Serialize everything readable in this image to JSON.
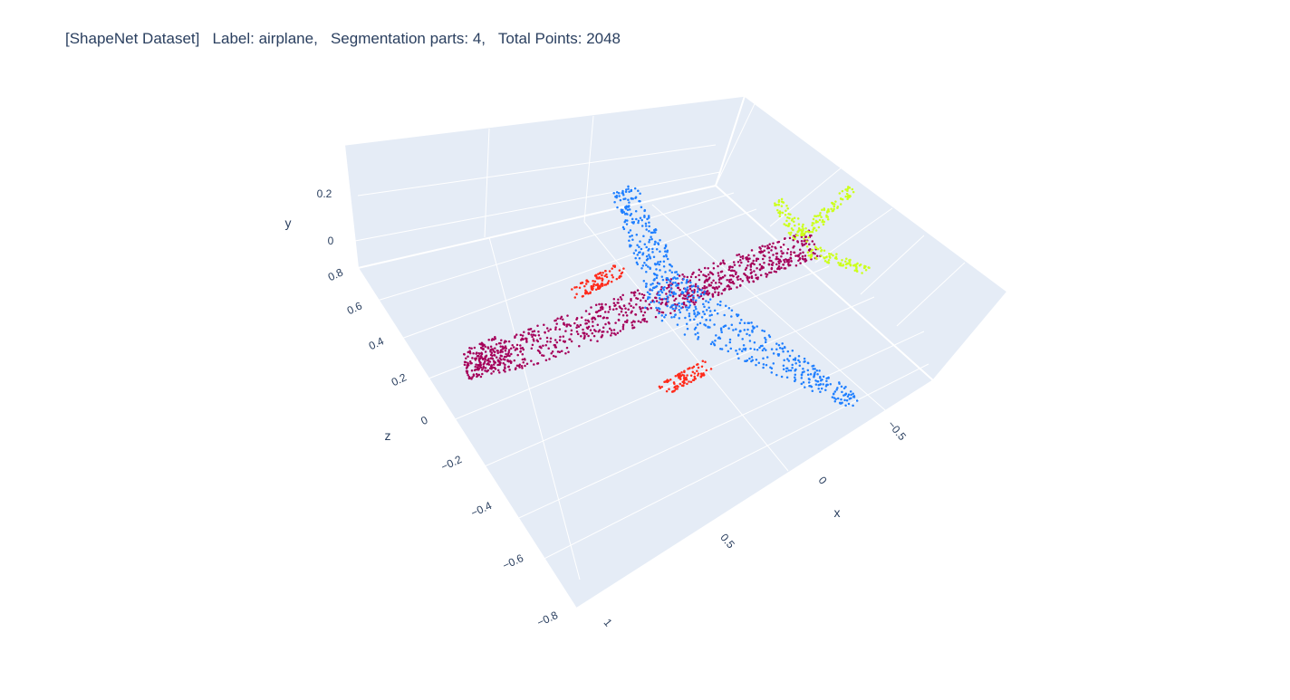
{
  "title": "[ShapeNet Dataset]   Label: airplane,   Segmentation parts: 4,   Total Points: 2048",
  "chart_data": {
    "type": "scatter3d",
    "title": "[ShapeNet Dataset]   Label: airplane,   Segmentation parts: 4,   Total Points: 2048",
    "dataset": "ShapeNet",
    "label": "airplane",
    "segmentation_parts": 4,
    "total_points": 2048,
    "xlabel": "x",
    "ylabel": "y",
    "zlabel": "z",
    "x_ticks": [
      "−0.5",
      "0",
      "0.5",
      "1"
    ],
    "y_ticks": [
      "0",
      "0.2"
    ],
    "z_ticks": [
      "0.8",
      "0.6",
      "0.4",
      "0.2",
      "0",
      "−0.2",
      "−0.4",
      "−0.6",
      "−0.8"
    ],
    "xlim": [
      -0.9,
      1.1
    ],
    "ylim": [
      -0.1,
      0.35
    ],
    "zlim": [
      -0.9,
      0.9
    ],
    "background": "#e5ecf6",
    "grid": true,
    "parts": [
      {
        "part": "fuselage",
        "color": "#a5005a",
        "approx_points": 1000
      },
      {
        "part": "wings",
        "color": "#1f7fff",
        "approx_points": 620
      },
      {
        "part": "tail",
        "color": "#ccff1a",
        "approx_points": 230
      },
      {
        "part": "engines",
        "color": "#ff2a1a",
        "approx_points": 198
      }
    ]
  }
}
